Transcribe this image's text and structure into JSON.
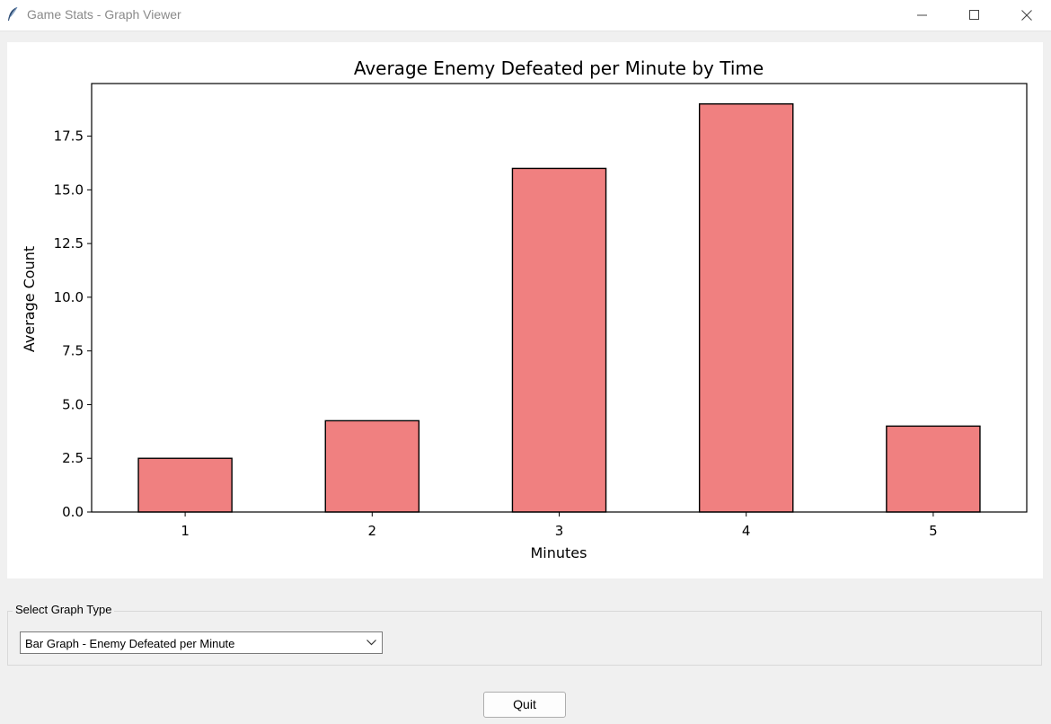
{
  "window": {
    "title": "Game Stats - Graph Viewer",
    "app_icon": "feather-icon"
  },
  "chart_data": {
    "type": "bar",
    "title": "Average Enemy Defeated per Minute by Time",
    "xlabel": "Minutes",
    "ylabel": "Average Count",
    "categories": [
      "1",
      "2",
      "3",
      "4",
      "5"
    ],
    "values": [
      2.5,
      4.25,
      16.0,
      19.0,
      4.0
    ],
    "yticks": [
      "0.0",
      "2.5",
      "5.0",
      "7.5",
      "10.0",
      "12.5",
      "15.0",
      "17.5"
    ],
    "ylim": [
      0,
      19.95
    ],
    "grid": false,
    "bar_color": "#f08080",
    "edge_color": "#000000"
  },
  "controls": {
    "group_label": "Select Graph Type",
    "graph_type_selected": "Bar Graph - Enemy Defeated per Minute",
    "quit_label": "Quit"
  }
}
